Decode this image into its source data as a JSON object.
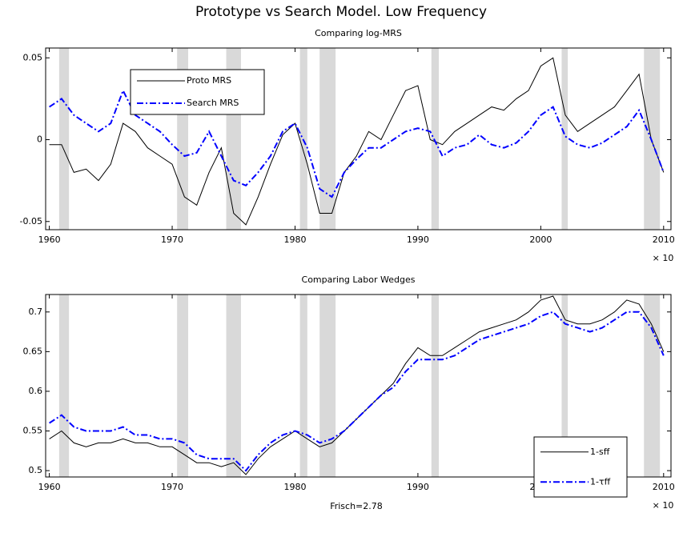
{
  "title": "Prototype vs Search Model. Low Frequency",
  "chart_data": [
    {
      "type": "line",
      "title": "Comparing log-MRS",
      "x_exponent_label": "× 10",
      "x": [
        1960,
        1961,
        1962,
        1963,
        1964,
        1965,
        1966,
        1967,
        1968,
        1969,
        1970,
        1971,
        1972,
        1973,
        1974,
        1975,
        1976,
        1977,
        1978,
        1979,
        1980,
        1981,
        1982,
        1983,
        1984,
        1985,
        1986,
        1987,
        1988,
        1989,
        1990,
        1991,
        1992,
        1993,
        1994,
        1995,
        1996,
        1997,
        1998,
        1999,
        2000,
        2001,
        2002,
        2003,
        2004,
        2005,
        2006,
        2007,
        2008,
        2009,
        2010
      ],
      "series": [
        {
          "name": "Proto MRS",
          "color": "#000000",
          "line_style": "solid",
          "values": [
            -0.003,
            -0.003,
            -0.02,
            -0.018,
            -0.025,
            -0.015,
            0.01,
            0.005,
            -0.005,
            -0.01,
            -0.015,
            -0.035,
            -0.04,
            -0.02,
            -0.005,
            -0.045,
            -0.052,
            -0.035,
            -0.015,
            0.003,
            0.01,
            -0.015,
            -0.045,
            -0.045,
            -0.02,
            -0.01,
            0.005,
            0.0,
            0.015,
            0.03,
            0.033,
            0.0,
            -0.003,
            0.005,
            0.01,
            0.015,
            0.02,
            0.018,
            0.025,
            0.03,
            0.045,
            0.05,
            0.015,
            0.005,
            0.01,
            0.015,
            0.02,
            0.03,
            0.04,
            0.0,
            -0.02
          ]
        },
        {
          "name": "Search MRS",
          "color": "#0000ff",
          "line_style": "dashdot",
          "values": [
            0.02,
            0.025,
            0.015,
            0.01,
            0.005,
            0.01,
            0.03,
            0.015,
            0.01,
            0.005,
            -0.003,
            -0.01,
            -0.008,
            0.005,
            -0.01,
            -0.025,
            -0.028,
            -0.02,
            -0.01,
            0.005,
            0.01,
            -0.005,
            -0.03,
            -0.035,
            -0.02,
            -0.012,
            -0.005,
            -0.005,
            0.0,
            0.005,
            0.007,
            0.005,
            -0.01,
            -0.005,
            -0.003,
            0.003,
            -0.003,
            -0.005,
            -0.002,
            0.005,
            0.015,
            0.02,
            0.002,
            -0.003,
            -0.005,
            -0.002,
            0.003,
            0.008,
            0.018,
            0.0,
            -0.02
          ]
        }
      ],
      "shaded_regions": [
        [
          1960.8,
          1961.6
        ],
        [
          1970.4,
          1971.3
        ],
        [
          1974.4,
          1975.6
        ],
        [
          1980.4,
          1981.0
        ],
        [
          1982.0,
          1983.3
        ],
        [
          1991.1,
          1991.7
        ],
        [
          2001.7,
          2002.2
        ],
        [
          2008.4,
          2009.7
        ]
      ],
      "shade_color": "#d9d9d9",
      "xlim": [
        1959.7,
        2010.6
      ],
      "xticks": [
        1960,
        1970,
        1980,
        1990,
        2000,
        2010
      ],
      "ylim": [
        -0.055,
        0.056
      ],
      "yticks": [
        -0.05,
        0,
        0.05
      ],
      "legend": "upper left"
    },
    {
      "type": "line",
      "title": "Comparing Labor Wedges",
      "x_label": "Frisch=2.78",
      "x_exponent_label": "× 10",
      "x": [
        1960,
        1961,
        1962,
        1963,
        1964,
        1965,
        1966,
        1967,
        1968,
        1969,
        1970,
        1971,
        1972,
        1973,
        1974,
        1975,
        1976,
        1977,
        1978,
        1979,
        1980,
        1981,
        1982,
        1983,
        1984,
        1985,
        1986,
        1987,
        1988,
        1989,
        1990,
        1991,
        1992,
        1993,
        1994,
        1995,
        1996,
        1997,
        1998,
        1999,
        2000,
        2001,
        2002,
        2003,
        2004,
        2005,
        2006,
        2007,
        2008,
        2009,
        2010
      ],
      "series": [
        {
          "name": "1-sff",
          "color": "#000000",
          "line_style": "solid",
          "values": [
            0.54,
            0.55,
            0.535,
            0.53,
            0.535,
            0.535,
            0.54,
            0.535,
            0.535,
            0.53,
            0.53,
            0.52,
            0.51,
            0.51,
            0.505,
            0.51,
            0.495,
            0.515,
            0.53,
            0.54,
            0.55,
            0.54,
            0.53,
            0.535,
            0.55,
            0.565,
            0.58,
            0.595,
            0.61,
            0.635,
            0.655,
            0.645,
            0.645,
            0.655,
            0.665,
            0.675,
            0.68,
            0.685,
            0.69,
            0.7,
            0.715,
            0.72,
            0.69,
            0.685,
            0.685,
            0.69,
            0.7,
            0.715,
            0.71,
            0.685,
            0.65
          ]
        },
        {
          "name": "1-τff",
          "color": "#0000ff",
          "line_style": "dashdot",
          "values": [
            0.56,
            0.57,
            0.555,
            0.55,
            0.55,
            0.55,
            0.555,
            0.545,
            0.545,
            0.54,
            0.54,
            0.535,
            0.52,
            0.515,
            0.515,
            0.515,
            0.5,
            0.52,
            0.535,
            0.545,
            0.55,
            0.545,
            0.535,
            0.54,
            0.55,
            0.565,
            0.58,
            0.595,
            0.605,
            0.625,
            0.64,
            0.64,
            0.64,
            0.645,
            0.655,
            0.665,
            0.67,
            0.675,
            0.68,
            0.685,
            0.695,
            0.7,
            0.685,
            0.68,
            0.675,
            0.68,
            0.69,
            0.7,
            0.7,
            0.68,
            0.645
          ]
        }
      ],
      "shaded_regions": [
        [
          1960.8,
          1961.6
        ],
        [
          1970.4,
          1971.3
        ],
        [
          1974.4,
          1975.6
        ],
        [
          1980.4,
          1981.0
        ],
        [
          1982.0,
          1983.3
        ],
        [
          1991.1,
          1991.7
        ],
        [
          2001.7,
          2002.2
        ],
        [
          2008.4,
          2009.7
        ]
      ],
      "shade_color": "#d9d9d9",
      "xlim": [
        1959.7,
        2010.6
      ],
      "xticks": [
        1960,
        1970,
        1980,
        1990,
        2000,
        2010
      ],
      "ylim": [
        0.492,
        0.722
      ],
      "yticks": [
        0.5,
        0.55,
        0.6,
        0.65,
        0.7
      ],
      "legend": "lower right"
    }
  ]
}
